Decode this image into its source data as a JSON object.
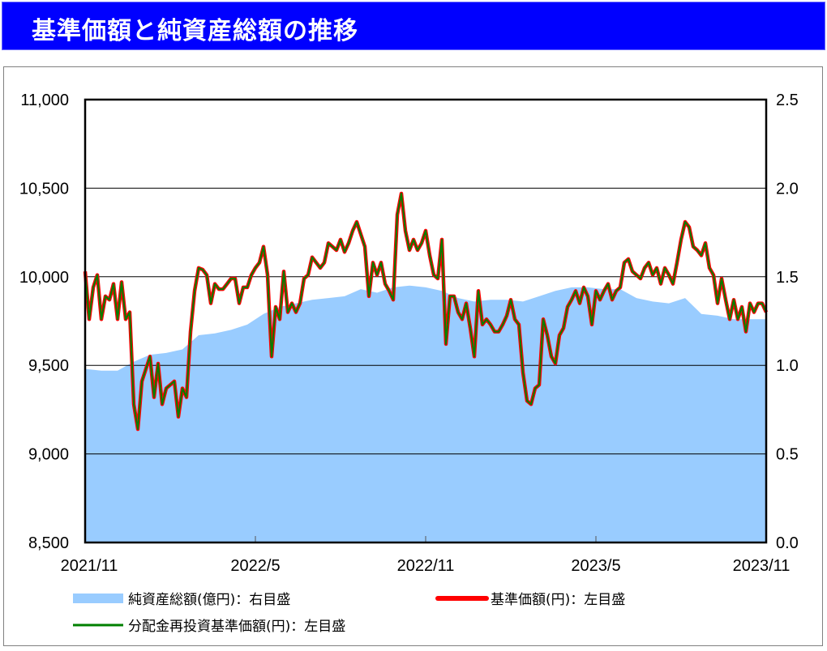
{
  "title": "基準価額と純資産総額の推移",
  "colors": {
    "title_bg": "#0000FF",
    "net_assets": "#99CCFF",
    "nav": "#FF0000",
    "reinvested_nav": "#008000"
  },
  "chart_data": {
    "type": "line",
    "title": "基準価額と純資産総額の推移",
    "x_range": [
      "2021/11",
      "2023/11"
    ],
    "x_ticks": [
      "2021/11",
      "2022/5",
      "2022/11",
      "2023/5",
      "2023/11"
    ],
    "y_left": {
      "range": [
        8500,
        11000
      ],
      "ticks": [
        "8,500",
        "9,000",
        "9,500",
        "10,000",
        "10,500",
        "11,000"
      ],
      "tick_values": [
        8500,
        9000,
        9500,
        10000,
        10500,
        11000
      ]
    },
    "y_right": {
      "range": [
        0,
        2.5
      ],
      "ticks": [
        "0.0",
        "0.5",
        "1.0",
        "1.5",
        "2.0",
        "2.5"
      ],
      "tick_values": [
        0,
        0.5,
        1.0,
        1.5,
        2.0,
        2.5
      ]
    },
    "grid": "horizontal",
    "legend_placement": "bottom",
    "series": [
      {
        "name": "純資産総額(億円)：右目盛",
        "type": "area",
        "axis": "right",
        "sampling": "evenly spaced over x_range",
        "values": [
          0.98,
          0.97,
          0.97,
          1.02,
          1.06,
          1.07,
          1.09,
          1.17,
          1.18,
          1.2,
          1.23,
          1.29,
          1.33,
          1.35,
          1.37,
          1.38,
          1.39,
          1.43,
          1.41,
          1.44,
          1.45,
          1.44,
          1.42,
          1.38,
          1.36,
          1.37,
          1.37,
          1.36,
          1.39,
          1.42,
          1.44,
          1.44,
          1.43,
          1.43,
          1.38,
          1.36,
          1.35,
          1.38,
          1.29,
          1.28,
          1.26,
          1.26,
          1.26
        ]
      },
      {
        "name": "基準価額(円)：左目盛",
        "type": "line",
        "axis": "left",
        "sampling": "evenly spaced over x_range",
        "values": [
          10030,
          9760,
          9940,
          10010,
          9760,
          9890,
          9870,
          9960,
          9760,
          9970,
          9760,
          9800,
          9280,
          9140,
          9410,
          9480,
          9550,
          9320,
          9510,
          9280,
          9370,
          9390,
          9410,
          9210,
          9370,
          9320,
          9690,
          9920,
          10050,
          10040,
          10010,
          9850,
          9960,
          9930,
          9930,
          9960,
          9990,
          9990,
          9850,
          9940,
          9940,
          10010,
          10050,
          10080,
          10170,
          10010,
          9550,
          9830,
          9760,
          10030,
          9800,
          9850,
          9800,
          9850,
          9990,
          10010,
          10110,
          10080,
          10050,
          10080,
          10190,
          10170,
          10150,
          10210,
          10140,
          10190,
          10260,
          10310,
          10240,
          10170,
          9890,
          10080,
          10010,
          10080,
          9960,
          9920,
          9870,
          10350,
          10470,
          10260,
          10150,
          10210,
          10150,
          10190,
          10260,
          10120,
          10010,
          9990,
          10210,
          9620,
          9890,
          9890,
          9800,
          9760,
          9850,
          9710,
          9550,
          9920,
          9730,
          9760,
          9730,
          9690,
          9690,
          9730,
          9780,
          9870,
          9760,
          9730,
          9460,
          9300,
          9280,
          9370,
          9390,
          9760,
          9670,
          9550,
          9510,
          9670,
          9710,
          9830,
          9870,
          9920,
          9850,
          9940,
          9890,
          9730,
          9920,
          9870,
          9920,
          9960,
          9870,
          9920,
          9940,
          10080,
          10100,
          10030,
          10010,
          9990,
          10050,
          10080,
          10010,
          10050,
          9960,
          10050,
          10010,
          9960,
          10080,
          10210,
          10310,
          10280,
          10170,
          10150,
          10120,
          10190,
          10050,
          10010,
          9850,
          9990,
          9870,
          9760,
          9870,
          9760,
          9830,
          9690,
          9850,
          9800,
          9850,
          9850,
          9800
        ]
      },
      {
        "name": "分配金再投資基準価額(円)：左目盛",
        "type": "line",
        "axis": "left",
        "sampling": "evenly spaced over x_range",
        "values": [
          10030,
          9760,
          9940,
          10010,
          9760,
          9890,
          9870,
          9960,
          9760,
          9970,
          9760,
          9800,
          9280,
          9140,
          9410,
          9480,
          9550,
          9320,
          9510,
          9280,
          9370,
          9390,
          9410,
          9210,
          9370,
          9320,
          9690,
          9920,
          10050,
          10040,
          10010,
          9850,
          9960,
          9930,
          9930,
          9960,
          9990,
          9990,
          9850,
          9940,
          9940,
          10010,
          10050,
          10080,
          10170,
          10010,
          9550,
          9830,
          9760,
          10030,
          9800,
          9850,
          9800,
          9850,
          9990,
          10010,
          10110,
          10080,
          10050,
          10080,
          10190,
          10170,
          10150,
          10210,
          10140,
          10190,
          10260,
          10310,
          10240,
          10170,
          9890,
          10080,
          10010,
          10080,
          9960,
          9920,
          9870,
          10350,
          10470,
          10260,
          10150,
          10210,
          10150,
          10190,
          10260,
          10120,
          10010,
          9990,
          10210,
          9620,
          9890,
          9890,
          9800,
          9760,
          9850,
          9710,
          9550,
          9920,
          9730,
          9760,
          9730,
          9690,
          9690,
          9730,
          9780,
          9870,
          9760,
          9730,
          9460,
          9300,
          9280,
          9370,
          9390,
          9760,
          9670,
          9550,
          9510,
          9670,
          9710,
          9830,
          9870,
          9920,
          9850,
          9940,
          9890,
          9730,
          9920,
          9870,
          9920,
          9960,
          9870,
          9920,
          9940,
          10080,
          10100,
          10030,
          10010,
          9990,
          10050,
          10080,
          10010,
          10050,
          9960,
          10050,
          10010,
          9960,
          10080,
          10210,
          10310,
          10280,
          10170,
          10150,
          10120,
          10190,
          10050,
          10010,
          9850,
          9990,
          9870,
          9760,
          9870,
          9760,
          9830,
          9690,
          9850,
          9800,
          9850,
          9850,
          9800
        ]
      }
    ]
  }
}
